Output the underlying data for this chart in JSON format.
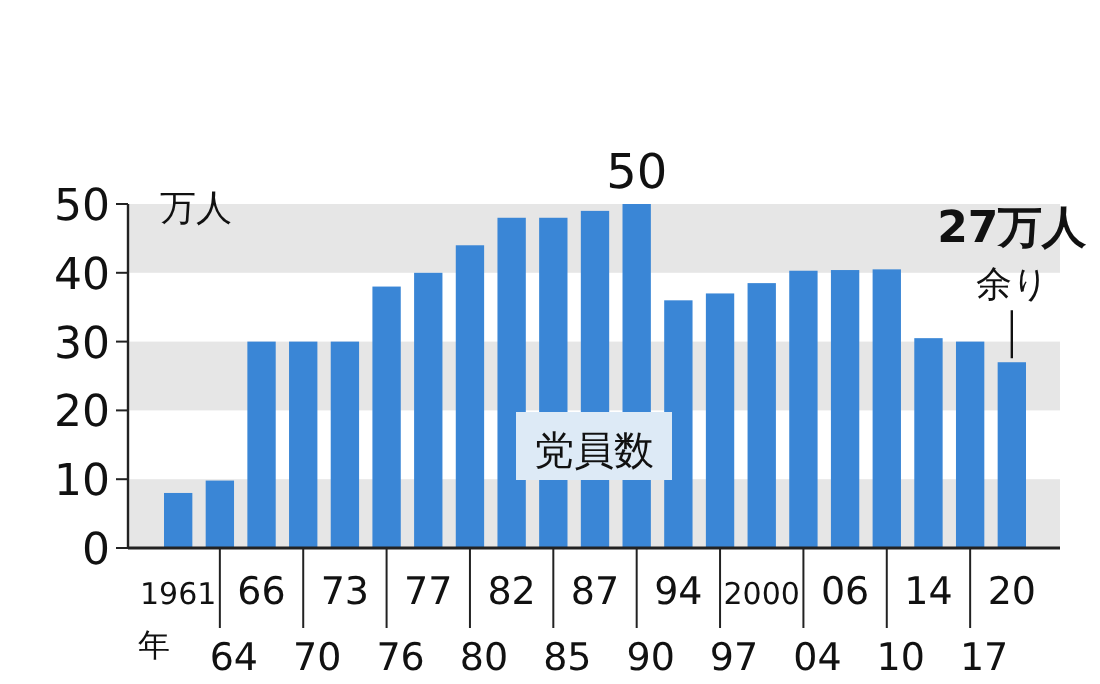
{
  "chart_data": {
    "type": "bar",
    "ylabel": "万人",
    "xlabel": "年",
    "categories": [
      "1961",
      "64",
      "66",
      "70",
      "73",
      "76",
      "77",
      "80",
      "82",
      "85",
      "87",
      "90",
      "94",
      "97",
      "2000",
      "04",
      "06",
      "10",
      "14",
      "17",
      "20"
    ],
    "values": [
      8,
      9.8,
      30,
      30,
      30,
      38,
      40,
      44,
      48,
      48,
      49,
      50,
      36,
      37,
      38.5,
      40.3,
      40.4,
      40.5,
      30.5,
      30,
      27
    ],
    "value_labels": [
      null,
      null,
      null,
      null,
      null,
      null,
      null,
      null,
      null,
      null,
      null,
      "50",
      null,
      null,
      null,
      null,
      null,
      null,
      null,
      null,
      null
    ],
    "color": "#3a86d6",
    "ylim": [
      0,
      50
    ],
    "yticks": [
      0,
      10,
      20,
      30,
      40,
      50
    ],
    "bands": [
      {
        "axis": "y",
        "from": 0,
        "to": 10,
        "color": "#e6e6e6"
      },
      {
        "axis": "y",
        "from": 20,
        "to": 30,
        "color": "#e6e6e6"
      },
      {
        "axis": "y",
        "from": 40,
        "to": 50,
        "color": "#e6e6e6"
      }
    ],
    "annotations": [
      {
        "text": "27万人余り",
        "x": "20",
        "y": 27
      },
      "党員数"
    ]
  }
}
